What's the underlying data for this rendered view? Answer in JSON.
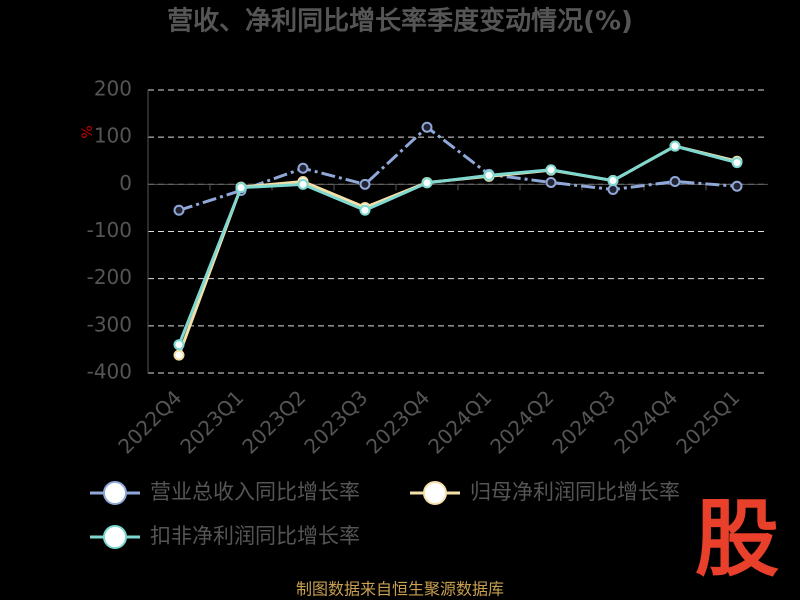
{
  "chart_data": {
    "type": "line",
    "title": "营收、净利同比增长率季度变动情况(%)",
    "y_label": "%",
    "categories": [
      "2022Q4",
      "2023Q1",
      "2023Q2",
      "2023Q3",
      "2023Q4",
      "2024Q1",
      "2024Q2",
      "2024Q3",
      "2024Q4",
      "2025Q1"
    ],
    "series": [
      {
        "name": "营业总收入同比增长率",
        "color": "#8fa8d8",
        "values": [
          -55,
          -13,
          34,
          0,
          121,
          21,
          4,
          -11,
          6,
          -4
        ]
      },
      {
        "name": "归母净利润同比增长率",
        "color": "#f5dfa8",
        "values": [
          -362,
          -6,
          6,
          -49,
          4,
          17,
          30,
          8,
          81,
          49
        ]
      },
      {
        "name": "扣非净利润同比增长率",
        "color": "#7fd8d0",
        "values": [
          -340,
          -7,
          0,
          -55,
          3,
          19,
          31,
          8,
          81,
          46
        ]
      }
    ],
    "ylim": [
      -400,
      200
    ],
    "yticks": [
      -400,
      -300,
      -200,
      -100,
      0,
      100,
      200
    ],
    "grid": true,
    "source": "制图数据来自恒生聚源数据库",
    "logo": "股"
  }
}
